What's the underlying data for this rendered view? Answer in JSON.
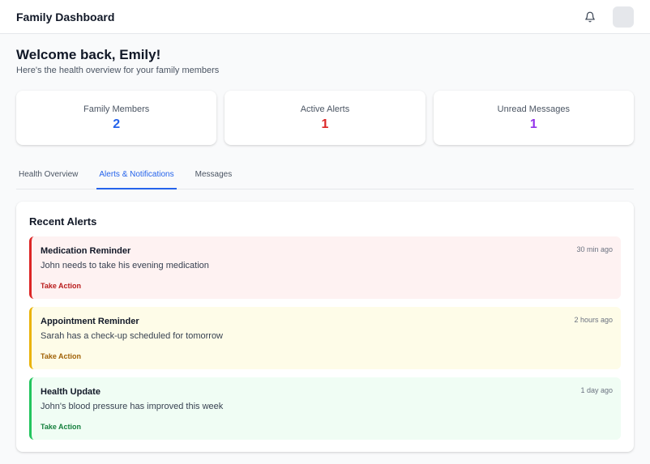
{
  "header": {
    "title": "Family Dashboard",
    "bell_icon": "bell-icon"
  },
  "welcome": {
    "heading": "Welcome back, Emily!",
    "subheading": "Here's the health overview for your family members"
  },
  "stats": [
    {
      "label": "Family Members",
      "value": "2",
      "color": "#2563eb"
    },
    {
      "label": "Active Alerts",
      "value": "1",
      "color": "#dc2626"
    },
    {
      "label": "Unread Messages",
      "value": "1",
      "color": "#9333ea"
    }
  ],
  "tabs": [
    {
      "label": "Health Overview",
      "active": false
    },
    {
      "label": "Alerts & Notifications",
      "active": true
    },
    {
      "label": "Messages",
      "active": false
    }
  ],
  "recent_alerts": {
    "title": "Recent Alerts",
    "items": [
      {
        "title": "Medication Reminder",
        "message": "John needs to take his evening medication",
        "time": "30 min ago",
        "action": "Take Action",
        "bg": "#fef2f2",
        "border": "#dc2626",
        "action_color": "#b91c1c"
      },
      {
        "title": "Appointment Reminder",
        "message": "Sarah has a check-up scheduled for tomorrow",
        "time": "2 hours ago",
        "action": "Take Action",
        "bg": "#fefce8",
        "border": "#eab308",
        "action_color": "#a16207"
      },
      {
        "title": "Health Update",
        "message": "John's blood pressure has improved this week",
        "time": "1 day ago",
        "action": "Take Action",
        "bg": "#f0fdf4",
        "border": "#22c55e",
        "action_color": "#15803d"
      }
    ]
  }
}
